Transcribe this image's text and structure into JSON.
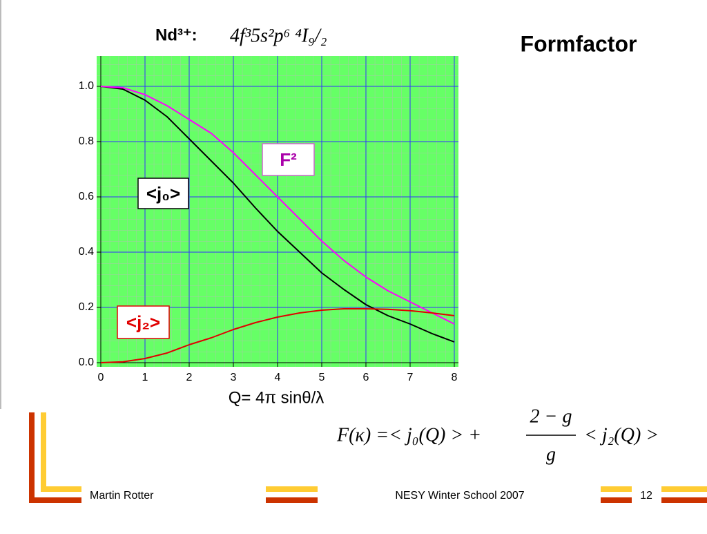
{
  "heading": "Formfactor",
  "footer": {
    "author": "Martin Rotter",
    "event": "NESY Winter School 2007",
    "page": "12"
  },
  "formula": {
    "lhs": "F(κ) =< j₀(Q) > +",
    "numerator": "2 − g",
    "denominator": "g",
    "rhs": "< j₂(Q) >"
  },
  "chart_data": {
    "type": "line",
    "title": "Nd³⁺:",
    "subtitle": "4f³5s²p⁶  ⁴I₉/₂",
    "x_label": "Q= 4π sinθ/λ",
    "x": [
      0,
      0.5,
      1,
      1.5,
      2,
      2.5,
      3,
      3.5,
      4,
      4.5,
      5,
      5.5,
      6,
      6.5,
      7,
      7.5,
      8
    ],
    "series": [
      {
        "name": "<j₀>",
        "color": "#000000",
        "values": [
          1.0,
          0.99,
          0.95,
          0.89,
          0.81,
          0.73,
          0.65,
          0.56,
          0.475,
          0.4,
          0.325,
          0.265,
          0.21,
          0.17,
          0.14,
          0.105,
          0.075
        ]
      },
      {
        "name": "F²",
        "color": "#ff00ff",
        "values": [
          1.0,
          0.995,
          0.97,
          0.93,
          0.88,
          0.83,
          0.76,
          0.68,
          0.6,
          0.52,
          0.44,
          0.37,
          0.31,
          0.26,
          0.22,
          0.18,
          0.14
        ]
      },
      {
        "name": "<j₂>",
        "color": "#e00000",
        "values": [
          0,
          0.003,
          0.015,
          0.035,
          0.065,
          0.09,
          0.12,
          0.145,
          0.165,
          0.18,
          0.19,
          0.195,
          0.195,
          0.193,
          0.188,
          0.18,
          0.17
        ]
      }
    ],
    "xlim": [
      0,
      8
    ],
    "xticks": [
      0,
      1,
      2,
      3,
      4,
      5,
      6,
      7,
      8
    ],
    "ylim": [
      0,
      1.1
    ],
    "yticks": [
      {
        "value": 0,
        "label": "0.0"
      },
      {
        "value": 0.2,
        "label": "0.2"
      },
      {
        "value": 0.4,
        "label": "0.4"
      },
      {
        "value": 0.6,
        "label": "0.6"
      },
      {
        "value": 0.8,
        "label": "0.8"
      },
      {
        "value": 1.0,
        "label": "1.0"
      }
    ],
    "grid": true,
    "grid_color": "#3333ff",
    "background": "#66ff66"
  }
}
